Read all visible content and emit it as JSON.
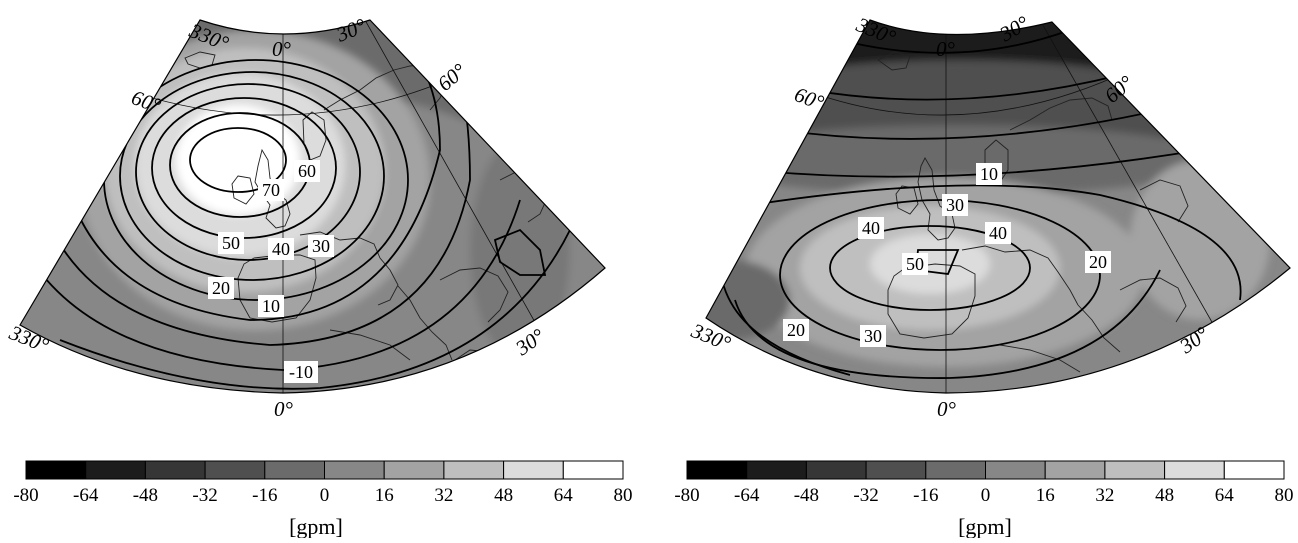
{
  "panels": [
    {
      "id": "left",
      "lon_labels": {
        "top_left": "330°",
        "top_center": "0°",
        "top_right": "30°",
        "bottom_left": "330°",
        "bottom_center": "0°",
        "bottom_right": "30°"
      },
      "lat_labels": {
        "left": "60°",
        "right": "60°"
      },
      "contour_labels": [
        "60",
        "70",
        "50",
        "40",
        "30",
        "20",
        "10",
        "-10"
      ],
      "colorbar": {
        "ticks": [
          "-80",
          "-64",
          "-48",
          "-32",
          "-16",
          "0",
          "16",
          "32",
          "48",
          "64",
          "80"
        ],
        "unit": "[gpm]"
      }
    },
    {
      "id": "right",
      "lon_labels": {
        "top_left": "330°",
        "top_center": "0°",
        "top_right": "30°",
        "bottom_left": "330°",
        "bottom_center": "0°",
        "bottom_right": "30°"
      },
      "lat_labels": {
        "left": "60°",
        "right": "60°"
      },
      "contour_labels": [
        "10",
        "30",
        "40",
        "40",
        "50",
        "20",
        "20",
        "30"
      ],
      "colorbar": {
        "ticks": [
          "-80",
          "-64",
          "-48",
          "-32",
          "-16",
          "0",
          "16",
          "32",
          "48",
          "64",
          "80"
        ],
        "unit": "[gpm]"
      }
    }
  ],
  "colorbar_colors": [
    "#000000",
    "#1c1c1c",
    "#363636",
    "#4f4f4f",
    "#6b6b6b",
    "#878787",
    "#a3a3a3",
    "#bfbfbf",
    "#dcdcdc",
    "#ffffff"
  ]
}
